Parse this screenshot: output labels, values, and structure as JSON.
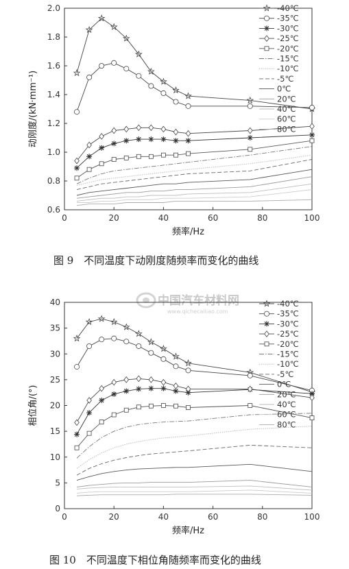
{
  "watermark": {
    "text": "中国汽车材料网",
    "url": "www.qichecailiao.com"
  },
  "chart_data": [
    {
      "type": "line",
      "title": "图 9　不同温度下动刚度随频率而变化的曲线",
      "xlabel": "频率/Hz",
      "ylabel": "动刚度/(kN·mm⁻¹)",
      "xlim": [
        0,
        100
      ],
      "ylim": [
        0.6,
        2.0
      ],
      "xticks": [
        0,
        20,
        40,
        60,
        80,
        100
      ],
      "yticks": [
        0.6,
        0.8,
        1.0,
        1.2,
        1.4,
        1.6,
        1.8,
        2.0
      ],
      "grid": false,
      "legend": "top-right",
      "x": [
        5,
        10,
        15,
        20,
        25,
        30,
        35,
        40,
        45,
        50,
        75,
        100
      ],
      "series": [
        {
          "name": "-40℃",
          "marker": "star",
          "values": [
            1.55,
            1.85,
            1.93,
            1.87,
            1.79,
            1.68,
            1.56,
            1.49,
            1.43,
            1.39,
            1.36,
            1.3
          ]
        },
        {
          "name": "-35℃",
          "marker": "circle",
          "values": [
            1.28,
            1.52,
            1.6,
            1.62,
            1.58,
            1.53,
            1.46,
            1.41,
            1.35,
            1.32,
            1.32,
            1.31
          ]
        },
        {
          "name": "-30℃",
          "marker": "asterisk",
          "values": [
            0.89,
            0.97,
            1.03,
            1.06,
            1.08,
            1.09,
            1.09,
            1.09,
            1.08,
            1.08,
            1.1,
            1.12
          ]
        },
        {
          "name": "-25℃",
          "marker": "diamond",
          "values": [
            0.94,
            1.05,
            1.11,
            1.15,
            1.16,
            1.17,
            1.17,
            1.16,
            1.14,
            1.13,
            1.15,
            1.18
          ]
        },
        {
          "name": "-20℃",
          "marker": "square",
          "values": [
            0.82,
            0.88,
            0.92,
            0.95,
            0.96,
            0.97,
            0.97,
            0.98,
            0.98,
            0.99,
            1.02,
            1.08
          ]
        },
        {
          "name": "-15℃",
          "marker": "none",
          "values": [
            0.78,
            0.82,
            0.85,
            0.87,
            0.88,
            0.89,
            0.9,
            0.91,
            0.92,
            0.93,
            0.98,
            1.04
          ]
        },
        {
          "name": "-10℃",
          "marker": "none",
          "values": [
            0.77,
            0.79,
            0.81,
            0.82,
            0.83,
            0.84,
            0.85,
            0.86,
            0.87,
            0.88,
            0.92,
            0.98
          ]
        },
        {
          "name": "-5℃",
          "marker": "none",
          "values": [
            0.74,
            0.76,
            0.78,
            0.79,
            0.8,
            0.81,
            0.82,
            0.83,
            0.84,
            0.85,
            0.87,
            0.95
          ]
        },
        {
          "name": "0℃",
          "marker": "none",
          "values": [
            0.7,
            0.72,
            0.73,
            0.74,
            0.75,
            0.76,
            0.77,
            0.78,
            0.78,
            0.79,
            0.81,
            0.88
          ]
        },
        {
          "name": "20℃",
          "marker": "none",
          "values": [
            0.68,
            0.69,
            0.7,
            0.71,
            0.72,
            0.72,
            0.73,
            0.73,
            0.74,
            0.74,
            0.76,
            0.83
          ]
        },
        {
          "name": "40℃",
          "marker": "none",
          "values": [
            0.66,
            0.67,
            0.68,
            0.68,
            0.69,
            0.69,
            0.7,
            0.7,
            0.7,
            0.71,
            0.72,
            0.78
          ]
        },
        {
          "name": "60℃",
          "marker": "none",
          "values": [
            0.65,
            0.65,
            0.66,
            0.66,
            0.67,
            0.67,
            0.67,
            0.68,
            0.68,
            0.68,
            0.69,
            0.74
          ]
        },
        {
          "name": "80℃",
          "marker": "none",
          "values": [
            0.63,
            0.64,
            0.64,
            0.64,
            0.65,
            0.65,
            0.65,
            0.65,
            0.66,
            0.66,
            0.66,
            0.67
          ]
        }
      ]
    },
    {
      "type": "line",
      "title": "图 10　不同温度下相位角随频率而变化的曲线",
      "xlabel": "频率/Hz",
      "ylabel": "相位角/(°)",
      "xlim": [
        0,
        100
      ],
      "ylim": [
        0,
        40
      ],
      "xticks": [
        0,
        20,
        40,
        60,
        80,
        100
      ],
      "yticks": [
        0,
        5,
        10,
        15,
        20,
        25,
        30,
        35,
        40
      ],
      "grid": false,
      "legend": "top-right",
      "x": [
        5,
        10,
        15,
        20,
        25,
        30,
        35,
        40,
        45,
        50,
        75,
        100
      ],
      "series": [
        {
          "name": "-40℃",
          "marker": "star",
          "values": [
            33.0,
            36.2,
            36.8,
            36.2,
            35.2,
            33.9,
            32.3,
            31.0,
            29.5,
            28.2,
            26.4,
            22.6
          ]
        },
        {
          "name": "-35℃",
          "marker": "circle",
          "values": [
            27.5,
            31.5,
            32.8,
            33.0,
            32.4,
            31.5,
            30.2,
            29.0,
            27.6,
            26.8,
            25.8,
            22.9
          ]
        },
        {
          "name": "-30℃",
          "marker": "asterisk",
          "values": [
            14.4,
            18.6,
            21.0,
            22.2,
            22.8,
            23.2,
            23.3,
            23.3,
            22.8,
            22.5,
            23.1,
            22.3
          ]
        },
        {
          "name": "-25℃",
          "marker": "diamond",
          "values": [
            16.7,
            21.0,
            23.3,
            24.5,
            25.0,
            25.2,
            25.0,
            24.5,
            23.8,
            23.2,
            23.2,
            21.5
          ]
        },
        {
          "name": "-20℃",
          "marker": "square",
          "values": [
            11.8,
            14.6,
            16.8,
            18.2,
            19.1,
            19.7,
            19.9,
            20.0,
            19.9,
            19.6,
            20.0,
            17.6
          ]
        },
        {
          "name": "-15℃",
          "marker": "none",
          "values": [
            9.8,
            12.0,
            13.8,
            15.0,
            15.8,
            16.3,
            16.6,
            16.8,
            16.9,
            17.0,
            18.2,
            18.5
          ]
        },
        {
          "name": "-10℃",
          "marker": "none",
          "values": [
            7.8,
            9.5,
            10.8,
            11.8,
            12.5,
            13.0,
            13.4,
            13.7,
            13.9,
            14.1,
            15.4,
            16.0
          ]
        },
        {
          "name": "-5℃",
          "marker": "none",
          "values": [
            6.5,
            7.8,
            8.7,
            9.4,
            9.9,
            10.3,
            10.6,
            10.8,
            11.0,
            11.2,
            12.3,
            11.8
          ]
        },
        {
          "name": "0℃",
          "marker": "none",
          "values": [
            5.5,
            6.2,
            6.8,
            7.2,
            7.5,
            7.7,
            7.8,
            7.9,
            8.0,
            8.0,
            8.6,
            7.2
          ]
        },
        {
          "name": "20℃",
          "marker": "none",
          "values": [
            4.2,
            4.5,
            4.7,
            4.9,
            5.0,
            5.0,
            5.1,
            5.1,
            5.1,
            5.1,
            5.5,
            4.2
          ]
        },
        {
          "name": "40℃",
          "marker": "none",
          "values": [
            3.8,
            4.0,
            4.1,
            4.2,
            4.2,
            4.2,
            4.2,
            4.2,
            4.2,
            4.2,
            4.4,
            3.6
          ]
        },
        {
          "name": "60℃",
          "marker": "none",
          "values": [
            3.0,
            3.2,
            3.3,
            3.3,
            3.3,
            3.3,
            3.3,
            3.3,
            3.3,
            3.3,
            3.6,
            3.0
          ]
        },
        {
          "name": "80℃",
          "marker": "none",
          "values": [
            2.5,
            2.6,
            2.7,
            2.7,
            2.7,
            2.7,
            2.7,
            2.7,
            2.8,
            2.8,
            2.8,
            2.6
          ]
        }
      ]
    }
  ]
}
